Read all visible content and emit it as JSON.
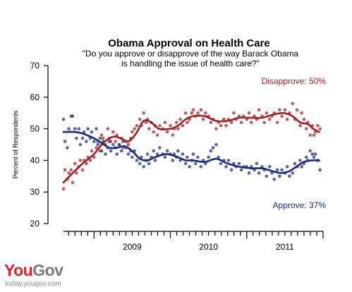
{
  "chart_data": {
    "type": "scatter",
    "title": "Obama Approval on Health Care",
    "subtitle_lines": [
      "\"Do you approve or disapprove of the way Barack Obama",
      "is handling the issue of health care?\""
    ],
    "ylabel": "Percent of Respondents",
    "ylim": [
      20,
      70
    ],
    "yticks": [
      20,
      30,
      40,
      50,
      60,
      70
    ],
    "xlim": [
      2008.6,
      2012.0
    ],
    "xtick_labels": [
      {
        "label": "2009",
        "x": 2009.0
      },
      {
        "label": "2010",
        "x": 2010.0
      },
      {
        "label": "2011",
        "x": 2011.0
      }
    ],
    "grid": false,
    "series": [
      {
        "key": "disapprove",
        "label": "Disapprove: 50%",
        "color": "#a31f23",
        "trend": [
          [
            2008.6,
            33
          ],
          [
            2008.72,
            36
          ],
          [
            2008.85,
            39
          ],
          [
            2009.0,
            42
          ],
          [
            2009.12,
            45.5
          ],
          [
            2009.25,
            47.5
          ],
          [
            2009.35,
            47
          ],
          [
            2009.45,
            46
          ],
          [
            2009.55,
            48.5
          ],
          [
            2009.65,
            52.5
          ],
          [
            2009.75,
            52
          ],
          [
            2009.85,
            50
          ],
          [
            2010.0,
            50
          ],
          [
            2010.1,
            51
          ],
          [
            2010.2,
            53
          ],
          [
            2010.3,
            54
          ],
          [
            2010.45,
            54
          ],
          [
            2010.6,
            52.5
          ],
          [
            2010.75,
            52.5
          ],
          [
            2010.9,
            53.5
          ],
          [
            2011.05,
            53.5
          ],
          [
            2011.2,
            53.5
          ],
          [
            2011.35,
            54.5
          ],
          [
            2011.48,
            55
          ],
          [
            2011.6,
            54
          ],
          [
            2011.7,
            52
          ],
          [
            2011.8,
            51.5
          ],
          [
            2011.87,
            50
          ],
          [
            2011.95,
            49
          ]
        ],
        "points": [
          [
            2008.6,
            31
          ],
          [
            2008.62,
            37
          ],
          [
            2008.65,
            34
          ],
          [
            2008.67,
            36
          ],
          [
            2008.7,
            37
          ],
          [
            2008.72,
            33
          ],
          [
            2008.75,
            39
          ],
          [
            2008.77,
            36
          ],
          [
            2008.8,
            38
          ],
          [
            2008.82,
            40
          ],
          [
            2008.85,
            37
          ],
          [
            2008.87,
            40
          ],
          [
            2008.9,
            39
          ],
          [
            2008.92,
            41
          ],
          [
            2008.95,
            40
          ],
          [
            2008.97,
            43
          ],
          [
            2009.0,
            41
          ],
          [
            2009.03,
            44
          ],
          [
            2009.05,
            46
          ],
          [
            2009.08,
            43
          ],
          [
            2009.1,
            48
          ],
          [
            2009.12,
            47
          ],
          [
            2009.15,
            45
          ],
          [
            2009.18,
            50
          ],
          [
            2009.2,
            47
          ],
          [
            2009.22,
            46
          ],
          [
            2009.25,
            49
          ],
          [
            2009.28,
            46
          ],
          [
            2009.3,
            48
          ],
          [
            2009.33,
            45
          ],
          [
            2009.36,
            47
          ],
          [
            2009.38,
            44
          ],
          [
            2009.42,
            46
          ],
          [
            2009.45,
            45
          ],
          [
            2009.48,
            47
          ],
          [
            2009.5,
            49
          ],
          [
            2009.53,
            50
          ],
          [
            2009.56,
            51
          ],
          [
            2009.6,
            53
          ],
          [
            2009.62,
            51
          ],
          [
            2009.65,
            55
          ],
          [
            2009.68,
            52
          ],
          [
            2009.7,
            53
          ],
          [
            2009.72,
            50
          ],
          [
            2009.75,
            52
          ],
          [
            2009.78,
            49
          ],
          [
            2009.8,
            51
          ],
          [
            2009.83,
            48
          ],
          [
            2009.86,
            51
          ],
          [
            2009.9,
            50
          ],
          [
            2009.93,
            52
          ],
          [
            2009.96,
            49
          ],
          [
            2010.0,
            51
          ],
          [
            2010.03,
            48
          ],
          [
            2010.05,
            50
          ],
          [
            2010.08,
            52
          ],
          [
            2010.1,
            50
          ],
          [
            2010.13,
            53
          ],
          [
            2010.16,
            51
          ],
          [
            2010.2,
            55
          ],
          [
            2010.22,
            52
          ],
          [
            2010.25,
            53
          ],
          [
            2010.28,
            55
          ],
          [
            2010.3,
            56
          ],
          [
            2010.33,
            54
          ],
          [
            2010.36,
            55
          ],
          [
            2010.4,
            56
          ],
          [
            2010.43,
            53
          ],
          [
            2010.46,
            55
          ],
          [
            2010.5,
            54
          ],
          [
            2010.53,
            52
          ],
          [
            2010.56,
            53
          ],
          [
            2010.6,
            50
          ],
          [
            2010.63,
            52
          ],
          [
            2010.66,
            51
          ],
          [
            2010.7,
            53
          ],
          [
            2010.73,
            51
          ],
          [
            2010.76,
            53
          ],
          [
            2010.8,
            52
          ],
          [
            2010.83,
            55
          ],
          [
            2010.86,
            53
          ],
          [
            2010.9,
            54
          ],
          [
            2010.93,
            52
          ],
          [
            2010.96,
            54
          ],
          [
            2011.0,
            53
          ],
          [
            2011.03,
            55
          ],
          [
            2011.06,
            52
          ],
          [
            2011.1,
            54
          ],
          [
            2011.13,
            53
          ],
          [
            2011.16,
            56
          ],
          [
            2011.2,
            54
          ],
          [
            2011.23,
            52
          ],
          [
            2011.26,
            55
          ],
          [
            2011.3,
            53
          ],
          [
            2011.33,
            54
          ],
          [
            2011.36,
            55
          ],
          [
            2011.4,
            52
          ],
          [
            2011.43,
            56
          ],
          [
            2011.46,
            54
          ],
          [
            2011.5,
            56
          ],
          [
            2011.53,
            53
          ],
          [
            2011.56,
            55
          ],
          [
            2011.6,
            58
          ],
          [
            2011.63,
            53
          ],
          [
            2011.66,
            56
          ],
          [
            2011.7,
            51
          ],
          [
            2011.72,
            55
          ],
          [
            2011.75,
            53
          ],
          [
            2011.78,
            50
          ],
          [
            2011.8,
            52
          ],
          [
            2011.83,
            48
          ],
          [
            2011.86,
            51
          ],
          [
            2011.88,
            48
          ],
          [
            2011.9,
            49
          ],
          [
            2011.93,
            51
          ],
          [
            2011.96,
            50
          ]
        ]
      },
      {
        "key": "approve",
        "label": "Approve: 37%",
        "color": "#1c2a7a",
        "trend": [
          [
            2008.6,
            49
          ],
          [
            2008.75,
            49
          ],
          [
            2008.85,
            48.5
          ],
          [
            2009.0,
            47
          ],
          [
            2009.1,
            45.5
          ],
          [
            2009.2,
            44
          ],
          [
            2009.3,
            44
          ],
          [
            2009.4,
            44.5
          ],
          [
            2009.5,
            43
          ],
          [
            2009.6,
            40.5
          ],
          [
            2009.7,
            40
          ],
          [
            2009.8,
            41
          ],
          [
            2009.95,
            42
          ],
          [
            2010.1,
            41
          ],
          [
            2010.2,
            40
          ],
          [
            2010.3,
            40
          ],
          [
            2010.45,
            39.5
          ],
          [
            2010.6,
            40.5
          ],
          [
            2010.75,
            39
          ],
          [
            2010.9,
            38
          ],
          [
            2011.05,
            37.5
          ],
          [
            2011.2,
            37.5
          ],
          [
            2011.35,
            36.5
          ],
          [
            2011.45,
            36
          ],
          [
            2011.55,
            36.5
          ],
          [
            2011.65,
            38
          ],
          [
            2011.75,
            39.5
          ],
          [
            2011.85,
            40
          ],
          [
            2011.95,
            40
          ]
        ],
        "points": [
          [
            2008.6,
            53
          ],
          [
            2008.62,
            46
          ],
          [
            2008.65,
            44
          ],
          [
            2008.67,
            50
          ],
          [
            2008.7,
            54
          ],
          [
            2008.72,
            54
          ],
          [
            2008.75,
            50
          ],
          [
            2008.77,
            47
          ],
          [
            2008.8,
            50
          ],
          [
            2008.82,
            45
          ],
          [
            2008.85,
            47
          ],
          [
            2008.87,
            49
          ],
          [
            2008.9,
            46
          ],
          [
            2008.92,
            50
          ],
          [
            2008.95,
            47
          ],
          [
            2008.97,
            49
          ],
          [
            2009.0,
            46
          ],
          [
            2009.03,
            50
          ],
          [
            2009.05,
            45
          ],
          [
            2009.08,
            47
          ],
          [
            2009.1,
            43
          ],
          [
            2009.12,
            46
          ],
          [
            2009.15,
            42
          ],
          [
            2009.18,
            44
          ],
          [
            2009.2,
            46
          ],
          [
            2009.22,
            43
          ],
          [
            2009.25,
            45
          ],
          [
            2009.28,
            44
          ],
          [
            2009.3,
            42
          ],
          [
            2009.33,
            45
          ],
          [
            2009.36,
            43
          ],
          [
            2009.38,
            46
          ],
          [
            2009.42,
            44
          ],
          [
            2009.45,
            42
          ],
          [
            2009.48,
            43
          ],
          [
            2009.5,
            41
          ],
          [
            2009.53,
            43
          ],
          [
            2009.56,
            40
          ],
          [
            2009.6,
            39
          ],
          [
            2009.62,
            41
          ],
          [
            2009.65,
            38
          ],
          [
            2009.68,
            40
          ],
          [
            2009.7,
            42
          ],
          [
            2009.72,
            39
          ],
          [
            2009.75,
            41
          ],
          [
            2009.78,
            43
          ],
          [
            2009.8,
            40
          ],
          [
            2009.83,
            42
          ],
          [
            2009.86,
            44
          ],
          [
            2009.9,
            42
          ],
          [
            2009.93,
            41
          ],
          [
            2009.96,
            43
          ],
          [
            2010.0,
            42
          ],
          [
            2010.03,
            40
          ],
          [
            2010.05,
            42
          ],
          [
            2010.08,
            41
          ],
          [
            2010.1,
            43
          ],
          [
            2010.13,
            40
          ],
          [
            2010.16,
            42
          ],
          [
            2010.2,
            39
          ],
          [
            2010.22,
            41
          ],
          [
            2010.25,
            38
          ],
          [
            2010.28,
            40
          ],
          [
            2010.3,
            42
          ],
          [
            2010.33,
            39
          ],
          [
            2010.36,
            41
          ],
          [
            2010.4,
            38
          ],
          [
            2010.43,
            40
          ],
          [
            2010.46,
            39
          ],
          [
            2010.5,
            41
          ],
          [
            2010.53,
            43
          ],
          [
            2010.56,
            44
          ],
          [
            2010.6,
            45
          ],
          [
            2010.63,
            41
          ],
          [
            2010.66,
            39
          ],
          [
            2010.7,
            40
          ],
          [
            2010.73,
            38
          ],
          [
            2010.76,
            40
          ],
          [
            2010.8,
            37
          ],
          [
            2010.83,
            39
          ],
          [
            2010.86,
            38
          ],
          [
            2010.9,
            39
          ],
          [
            2010.93,
            37
          ],
          [
            2010.96,
            38
          ],
          [
            2011.0,
            38
          ],
          [
            2011.03,
            36
          ],
          [
            2011.06,
            38
          ],
          [
            2011.1,
            37
          ],
          [
            2011.13,
            39
          ],
          [
            2011.16,
            36
          ],
          [
            2011.2,
            38
          ],
          [
            2011.23,
            37
          ],
          [
            2011.26,
            35
          ],
          [
            2011.3,
            38
          ],
          [
            2011.33,
            36
          ],
          [
            2011.36,
            34
          ],
          [
            2011.4,
            37
          ],
          [
            2011.43,
            35
          ],
          [
            2011.46,
            37
          ],
          [
            2011.5,
            36
          ],
          [
            2011.53,
            38
          ],
          [
            2011.56,
            35
          ],
          [
            2011.6,
            36
          ],
          [
            2011.63,
            39
          ],
          [
            2011.66,
            38
          ],
          [
            2011.7,
            40
          ],
          [
            2011.72,
            38
          ],
          [
            2011.75,
            39
          ],
          [
            2011.78,
            41
          ],
          [
            2011.8,
            40
          ],
          [
            2011.83,
            43
          ],
          [
            2011.86,
            42
          ],
          [
            2011.88,
            41
          ],
          [
            2011.9,
            42
          ],
          [
            2011.93,
            40
          ],
          [
            2011.96,
            37
          ]
        ]
      }
    ]
  },
  "branding": {
    "logo_you": "You",
    "logo_gov": "Gov",
    "site": "today.yougov.com"
  }
}
